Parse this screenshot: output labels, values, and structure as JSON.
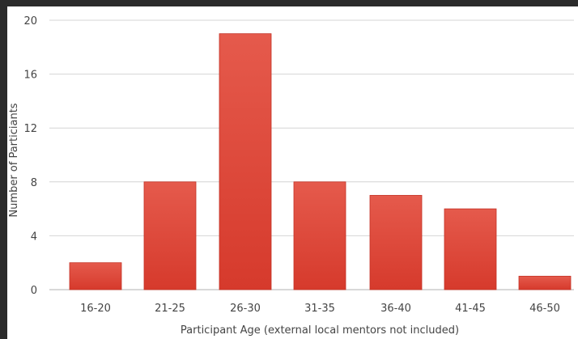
{
  "chart_data": {
    "type": "bar",
    "title": "",
    "xlabel": "Participant Age (external local mentors not included)",
    "ylabel": "Number of Particiants",
    "categories": [
      "16-20",
      "21-25",
      "26-30",
      "31-35",
      "36-40",
      "41-45",
      "46-50"
    ],
    "values": [
      2,
      8,
      19,
      8,
      7,
      6,
      1
    ],
    "ylim": [
      0,
      20
    ],
    "yticks": [
      "0",
      "4",
      "8",
      "12",
      "16",
      "20"
    ],
    "grid": true,
    "legend": "none",
    "colors": {
      "bar_fill_top": "#e55a4c",
      "bar_fill_bottom": "#d63a2c",
      "bar_stroke": "#c43226",
      "grid": "#d4d4d4",
      "axis": "#b0b0b0",
      "text": "#444444",
      "page_background": "#2b2b2b",
      "panel_background": "#ffffff"
    }
  }
}
